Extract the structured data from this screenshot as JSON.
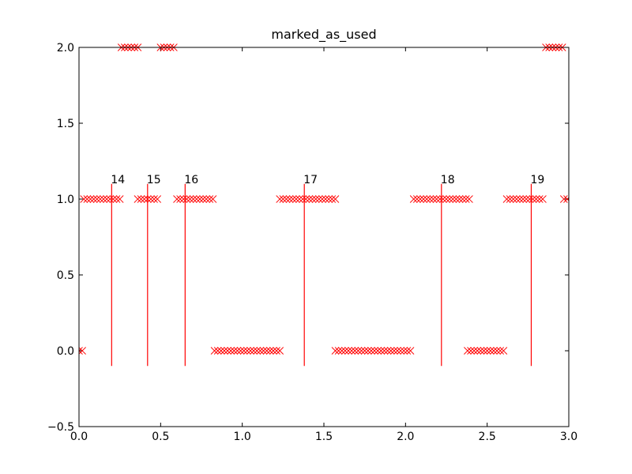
{
  "chart_data": {
    "type": "scatter",
    "title": "marked_as_used",
    "xlabel": "",
    "ylabel": "",
    "xlim": [
      0.0,
      3.0
    ],
    "ylim": [
      -0.5,
      2.0
    ],
    "xticks": [
      "0.0",
      "0.5",
      "1.0",
      "1.5",
      "2.0",
      "2.5",
      "3.0"
    ],
    "yticks": [
      "−0.5",
      "0.0",
      "0.5",
      "1.0",
      "1.5",
      "2.0"
    ],
    "grid": false,
    "marker": "x",
    "marker_color": "#ff0000",
    "line_color": "#ff0000",
    "segments": [
      {
        "y": 0,
        "x_start": 0.0,
        "x_end": 0.02,
        "step": 0.02
      },
      {
        "y": 1,
        "x_start": 0.03,
        "x_end": 0.24,
        "step": 0.02
      },
      {
        "y": 2,
        "x_start": 0.26,
        "x_end": 0.36,
        "step": 0.02
      },
      {
        "y": 1,
        "x_start": 0.36,
        "x_end": 0.48,
        "step": 0.02
      },
      {
        "y": 2,
        "x_start": 0.5,
        "x_end": 0.58,
        "step": 0.02
      },
      {
        "y": 1,
        "x_start": 0.6,
        "x_end": 0.82,
        "step": 0.02
      },
      {
        "y": 0,
        "x_start": 0.83,
        "x_end": 1.22,
        "step": 0.02
      },
      {
        "y": 1,
        "x_start": 1.23,
        "x_end": 1.56,
        "step": 0.02
      },
      {
        "y": 0,
        "x_start": 1.57,
        "x_end": 2.04,
        "step": 0.02
      },
      {
        "y": 1,
        "x_start": 2.05,
        "x_end": 2.38,
        "step": 0.02
      },
      {
        "y": 0,
        "x_start": 2.38,
        "x_end": 2.6,
        "step": 0.02
      },
      {
        "y": 1,
        "x_start": 2.62,
        "x_end": 2.85,
        "step": 0.02
      },
      {
        "y": 2,
        "x_start": 2.86,
        "x_end": 2.96,
        "step": 0.02
      },
      {
        "y": 1,
        "x_start": 2.97,
        "x_end": 3.0,
        "step": 0.02
      }
    ],
    "vlines": [
      {
        "x": 0.2,
        "ymin": -0.1,
        "ymax": 1.1,
        "label": "14"
      },
      {
        "x": 0.42,
        "ymin": -0.1,
        "ymax": 1.1,
        "label": "15"
      },
      {
        "x": 0.65,
        "ymin": -0.1,
        "ymax": 1.1,
        "label": "16"
      },
      {
        "x": 1.38,
        "ymin": -0.1,
        "ymax": 1.1,
        "label": "17"
      },
      {
        "x": 2.22,
        "ymin": -0.1,
        "ymax": 1.1,
        "label": "18"
      },
      {
        "x": 2.77,
        "ymin": -0.1,
        "ymax": 1.1,
        "label": "19"
      }
    ]
  }
}
